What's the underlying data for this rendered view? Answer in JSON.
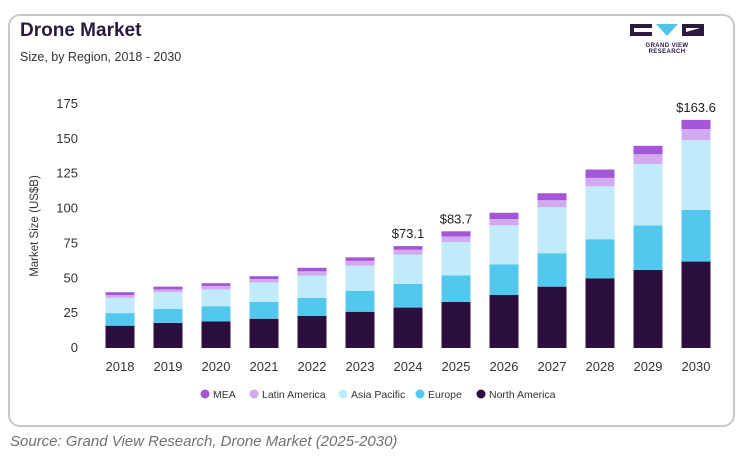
{
  "header": {
    "title": "Drone Market",
    "subtitle": "Size, by Region, 2018 - 2030"
  },
  "logo": {
    "text": "GRAND VIEW RESEARCH",
    "color": "#2a1a3f",
    "accent": "#4fc3ea"
  },
  "source": "Source: Grand View Research, Drone Market (2025-2030)",
  "chart_data": {
    "type": "bar",
    "stacked": true,
    "categories": [
      "2018",
      "2019",
      "2020",
      "2021",
      "2022",
      "2023",
      "2024",
      "2025",
      "2026",
      "2027",
      "2028",
      "2029",
      "2030"
    ],
    "series": [
      {
        "name": "North America",
        "color": "#2b0f3e",
        "values": [
          16,
          18,
          19,
          21,
          23,
          26,
          29,
          33,
          38,
          44,
          50,
          56,
          62
        ]
      },
      {
        "name": "Europe",
        "color": "#53c8ef",
        "values": [
          9,
          10,
          11,
          12,
          13,
          15,
          17,
          19,
          22,
          24,
          28,
          32,
          37
        ]
      },
      {
        "name": "Asia Pacific",
        "color": "#bfebfa",
        "values": [
          11,
          12,
          12,
          14,
          16,
          18,
          21,
          24,
          28,
          33,
          38,
          44,
          50
        ]
      },
      {
        "name": "Latin America",
        "color": "#d3aaf0",
        "values": [
          2,
          2,
          2.5,
          2.5,
          3,
          3.5,
          3.5,
          4,
          4.5,
          5,
          6,
          7,
          8
        ]
      },
      {
        "name": "MEA",
        "color": "#a356d8",
        "values": [
          2,
          2,
          2,
          2,
          2.5,
          2.5,
          2.6,
          3.7,
          4.5,
          5,
          6,
          6,
          6.6
        ]
      }
    ],
    "data_labels": [
      {
        "category": "2024",
        "text": "$73.1",
        "value": 73.1
      },
      {
        "category": "2025",
        "text": "$83.7",
        "value": 83.7
      },
      {
        "category": "2030",
        "text": "$163.6",
        "value": 163.6
      }
    ],
    "legend_order": [
      "MEA",
      "Latin America",
      "Asia Pacific",
      "Europe",
      "North America"
    ],
    "legend_position": "bottom",
    "yticks": [
      0,
      25,
      50,
      75,
      100,
      125,
      150,
      175
    ],
    "ylim": [
      0,
      175
    ],
    "ylabel": "Market Size (US$B)",
    "xlabel": "",
    "grid": false
  }
}
